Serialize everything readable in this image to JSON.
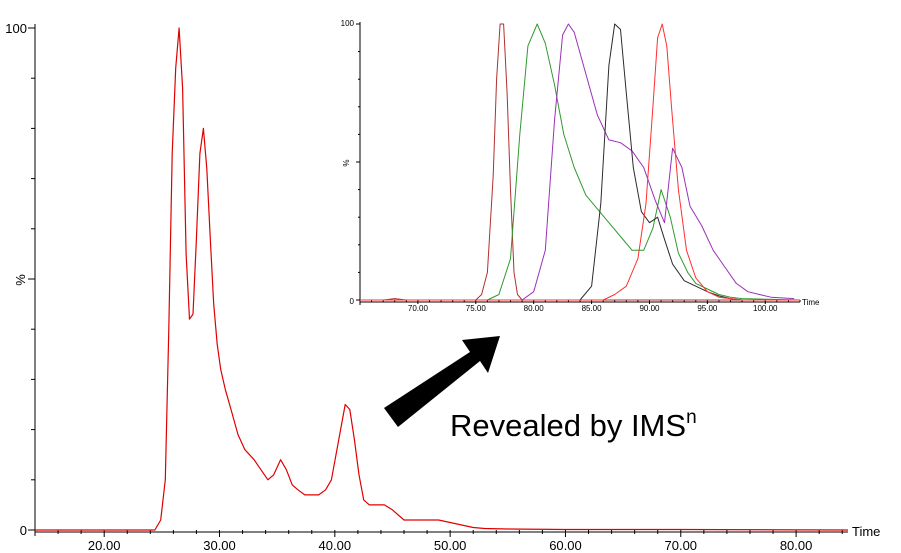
{
  "annotation": {
    "text": "Revealed by IMS",
    "superscript": "n"
  },
  "chart_data": [
    {
      "type": "line",
      "xlabel": "Time",
      "ylabel": "%",
      "xlim": [
        14,
        84.5
      ],
      "ylim": [
        0,
        100
      ],
      "x_ticks": [
        "20.00",
        "30.00",
        "40.00",
        "50.00",
        "60.00",
        "70.00",
        "80.00"
      ],
      "y_ticks": [
        "0",
        "100"
      ],
      "grid": false,
      "series": [
        {
          "color": "#e00000",
          "x": [
            14,
            24.4,
            24.9,
            25.3,
            25.6,
            25.9,
            26.2,
            26.5,
            26.8,
            27.1,
            27.4,
            27.7,
            28.0,
            28.3,
            28.6,
            28.9,
            29.2,
            29.5,
            29.8,
            30.1,
            30.5,
            31.0,
            31.6,
            32.2,
            33.0,
            33.6,
            34.2,
            34.7,
            35.3,
            35.8,
            36.3,
            36.8,
            37.4,
            38.0,
            38.6,
            39.2,
            39.7,
            40.1,
            40.5,
            40.9,
            41.3,
            41.7,
            42.1,
            42.5,
            43.0,
            43.6,
            44.3,
            45.0,
            46.0,
            47.0,
            48.0,
            49.0,
            50.0,
            51.0,
            52.0,
            53.0,
            55.0,
            60.0,
            70.0,
            84.5
          ],
          "y": [
            0,
            0,
            2,
            10,
            40,
            75,
            92,
            100,
            88,
            55,
            42,
            43,
            58,
            75,
            80,
            72,
            58,
            45,
            37,
            32,
            28,
            24,
            19,
            16,
            14,
            12,
            10,
            11,
            14,
            12,
            9,
            8,
            7,
            7,
            7,
            8,
            10,
            15,
            20,
            25,
            24,
            18,
            11,
            6,
            5,
            5,
            5,
            4,
            2,
            2,
            2,
            2,
            1.5,
            1,
            0.5,
            0.3,
            0.2,
            0.1,
            0.1,
            0
          ]
        }
      ]
    },
    {
      "type": "line",
      "xlabel": "Time",
      "ylabel": "%",
      "xlim": [
        65,
        103
      ],
      "ylim": [
        0,
        100
      ],
      "x_ticks": [
        "70.00",
        "75.00",
        "80.00",
        "85.00",
        "90.00",
        "95.00",
        "100.00"
      ],
      "y_ticks": [
        "0",
        "100"
      ],
      "grid": false,
      "series": [
        {
          "color": "#b03030",
          "x": [
            65,
            67,
            68,
            69,
            72,
            75,
            75.5,
            76,
            76.5,
            76.8,
            77.1,
            77.4,
            77.7,
            78,
            78.3,
            78.6,
            79,
            80,
            103
          ],
          "y": [
            0,
            0,
            0.5,
            0,
            0,
            0,
            2,
            10,
            45,
            80,
            100,
            100,
            75,
            40,
            10,
            2,
            0,
            0,
            0
          ]
        },
        {
          "color": "#2e9a2e",
          "x": [
            65,
            76,
            77,
            78,
            78.8,
            79.5,
            80.3,
            81,
            81.8,
            82.6,
            83.5,
            84.5,
            85.5,
            86.5,
            87.5,
            88.5,
            89.5,
            90.3,
            91,
            91.8,
            92.5,
            93.3,
            94,
            95,
            96,
            97,
            98,
            103
          ],
          "y": [
            0,
            0,
            2,
            15,
            60,
            92,
            100,
            93,
            78,
            60,
            48,
            38,
            33,
            28,
            23,
            18,
            18,
            26,
            40,
            30,
            17,
            10,
            6,
            4,
            2,
            1,
            0.5,
            0
          ]
        },
        {
          "color": "#9b30b8",
          "x": [
            65,
            79,
            80,
            81,
            81.8,
            82.5,
            83,
            83.5,
            84.5,
            85.5,
            86.5,
            87.5,
            88.5,
            89.5,
            90.5,
            91.3,
            92,
            92.8,
            93.5,
            94.5,
            95.5,
            96.5,
            97.5,
            98.5,
            99.5,
            100.5,
            102.5
          ],
          "y": [
            0,
            0,
            3,
            18,
            65,
            96,
            100,
            97,
            82,
            67,
            58,
            57,
            54,
            48,
            36,
            28,
            55,
            48,
            34,
            27,
            18,
            12,
            6,
            3,
            2,
            1,
            0.5
          ]
        },
        {
          "color": "#2b2b2b",
          "x": [
            65,
            84,
            85,
            85.8,
            86.5,
            87,
            87.5,
            88,
            88.6,
            89.3,
            90,
            90.7,
            91.3,
            92,
            93,
            94,
            95,
            96,
            97,
            98,
            103
          ],
          "y": [
            0,
            0,
            5,
            35,
            85,
            100,
            98,
            75,
            48,
            32,
            28,
            30,
            22,
            13,
            7,
            5,
            3,
            1.5,
            0.5,
            0,
            0
          ]
        },
        {
          "color": "#ff3030",
          "x": [
            65,
            86,
            87,
            88,
            89,
            89.7,
            90.3,
            90.7,
            91.1,
            91.5,
            91.9,
            92.5,
            93.2,
            94,
            95,
            96,
            97,
            98,
            103
          ],
          "y": [
            0,
            0,
            2,
            5,
            15,
            35,
            70,
            95,
            100,
            92,
            70,
            40,
            18,
            8,
            3,
            1,
            0.5,
            0,
            0
          ]
        }
      ]
    }
  ]
}
